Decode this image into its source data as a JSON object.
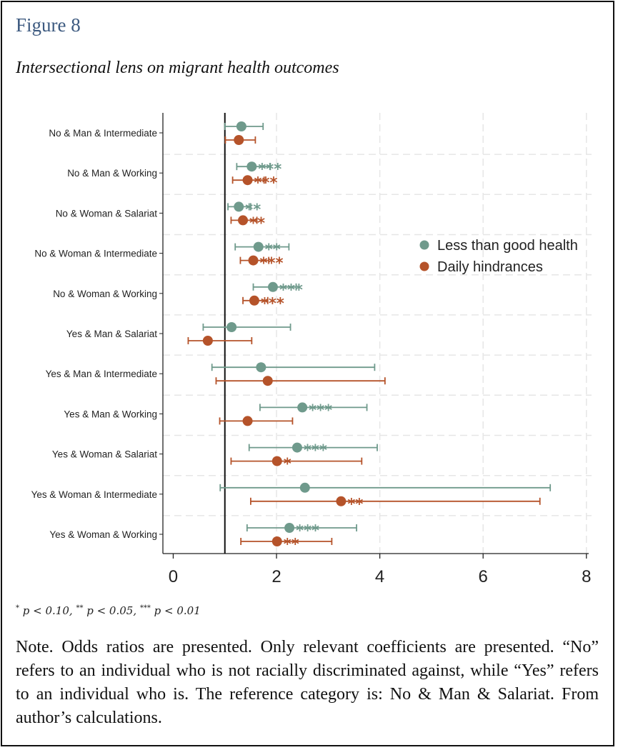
{
  "figure": {
    "label": "Figure 8",
    "title": "Intersectional lens on migrant health outcomes"
  },
  "significance_note": {
    "star1": "*",
    "t1": "p < 0.10,",
    "star2": "**",
    "t2": "p < 0.05,",
    "star3": "***",
    "t3": "p < 0.01"
  },
  "note": "Note. Odds ratios are presented. Only relevant coefficients are presented. “No” refers to an individual who is not racially discriminated against, while “Yes” refers to an individual who is. The reference category is: No & Man & Salariat. From author’s calculations.",
  "colors": {
    "series_1": "#6f9a8c",
    "series_2": "#b5532a",
    "reference_line": "#111111",
    "grid": "#e6e6e6"
  },
  "chart_data": {
    "type": "scatter",
    "subtype": "coefficient-plot-with-confidence-intervals",
    "orientation": "horizontal",
    "categories": [
      "No & Man & Intermediate",
      "No & Man & Working",
      "No & Woman & Salariat",
      "No & Woman & Intermediate",
      "No & Woman & Working",
      "Yes & Man & Salariat",
      "Yes & Man & Intermediate",
      "Yes & Man & Working",
      "Yes & Woman & Salariat",
      "Yes & Woman & Intermediate",
      "Yes & Woman & Working"
    ],
    "xlim": [
      -0.2,
      8.1
    ],
    "x_ticks": [
      0,
      2,
      4,
      6,
      8
    ],
    "reference_x": 1,
    "grid": true,
    "legend_position": "right",
    "series": [
      {
        "name": "Less than good health",
        "color": "#6f9a8c",
        "estimates": [
          1.32,
          1.52,
          1.27,
          1.65,
          1.93,
          1.13,
          1.7,
          2.5,
          2.4,
          2.55,
          2.25
        ],
        "ci_low": [
          1.0,
          1.23,
          1.06,
          1.2,
          1.55,
          0.58,
          0.75,
          1.68,
          1.47,
          0.91,
          1.43
        ],
        "ci_high": [
          1.74,
          1.88,
          1.5,
          2.24,
          2.38,
          2.27,
          3.9,
          3.75,
          3.95,
          7.3,
          3.55
        ],
        "stars": [
          "",
          "***",
          "**",
          "**",
          "***",
          "",
          "",
          "***",
          "***",
          "",
          "***"
        ]
      },
      {
        "name": "Daily hindrances",
        "color": "#b5532a",
        "estimates": [
          1.27,
          1.44,
          1.35,
          1.55,
          1.57,
          0.67,
          1.83,
          1.44,
          2.01,
          3.25,
          2.01
        ],
        "ci_low": [
          1.01,
          1.15,
          1.12,
          1.3,
          1.35,
          0.29,
          0.83,
          0.9,
          1.12,
          1.5,
          1.31
        ],
        "ci_high": [
          1.59,
          1.76,
          1.62,
          1.85,
          1.83,
          1.52,
          4.1,
          2.31,
          3.65,
          7.1,
          3.07
        ],
        "stars": [
          "",
          "***",
          "**",
          "***",
          "***",
          "",
          "",
          "",
          "*",
          "**",
          "**"
        ]
      }
    ]
  }
}
